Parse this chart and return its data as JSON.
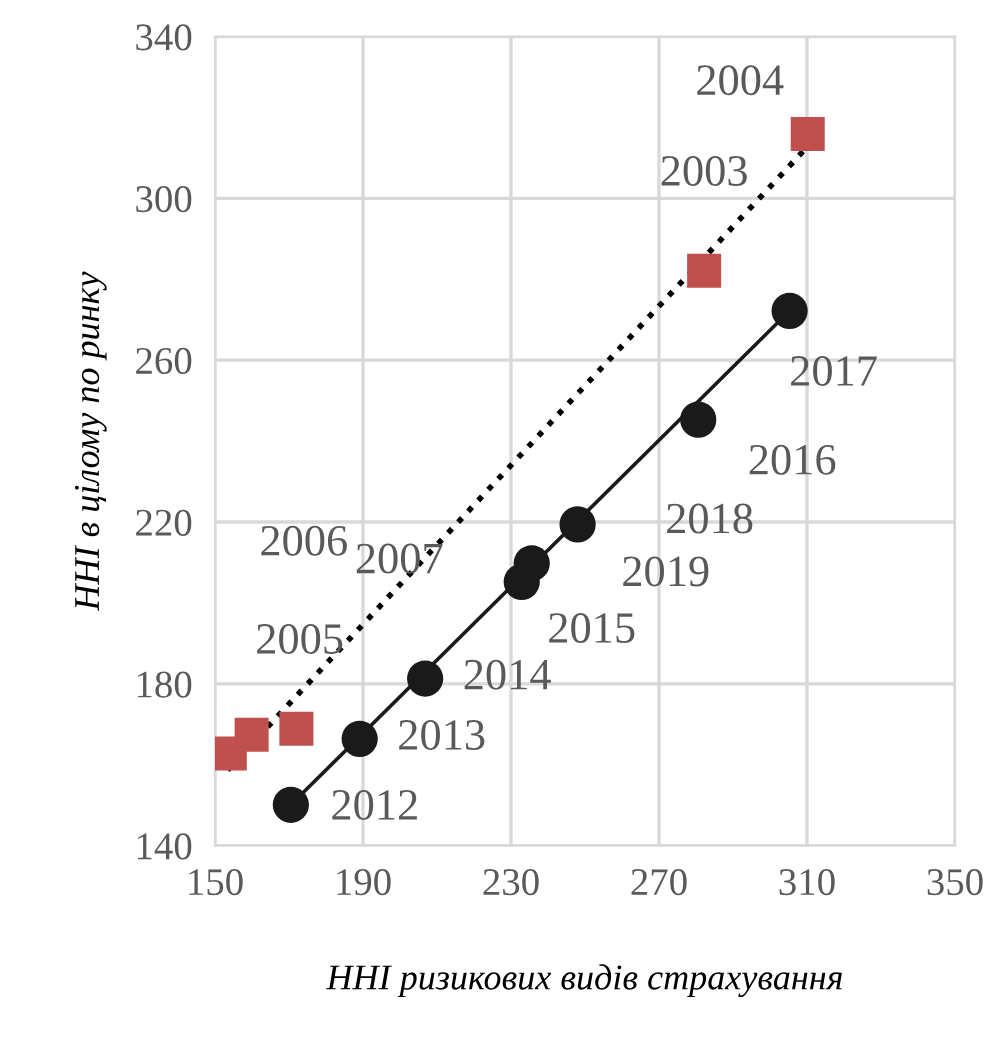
{
  "chart_data": {
    "type": "scatter",
    "xlabel": "HHI ризикових видів страхування",
    "ylabel": "HHI в цілому по ринку",
    "xlim": [
      150,
      350
    ],
    "xticks": [
      150,
      190,
      230,
      270,
      310,
      350
    ],
    "ylim": [
      140,
      340
    ],
    "yticks": [
      140,
      180,
      220,
      260,
      300,
      340
    ],
    "grid": true,
    "series": [
      {
        "type": "line",
        "color": "#000000",
        "line_style": "dotted",
        "marker": "none",
        "x": [
          153.4,
          308.9
        ],
        "values": [
          158.7,
          311.6
        ]
      },
      {
        "type": "line",
        "color": "#1a1a1a",
        "line_style": "solid",
        "marker": "none",
        "x": [
          170.5,
          305.3
        ],
        "values": [
          150.1,
          272.2
        ]
      },
      {
        "color": "#c0504d",
        "marker": "square",
        "x": [
          282.2,
          310.2,
          159.9,
          154.0,
          172.0
        ],
        "values": [
          282.1,
          315.9,
          167.4,
          162.8,
          168.9
        ]
      },
      {
        "color": "#1a1a1a",
        "marker": "circle",
        "x": [
          170.5,
          189.1,
          206.8,
          232.9,
          280.6,
          305.3,
          248.0,
          235.6
        ],
        "values": [
          150.1,
          166.4,
          181.3,
          205.2,
          245.3,
          272.2,
          219.4,
          209.8
        ]
      }
    ],
    "annotations": [
      {
        "text": "2004",
        "x": 310.2,
        "y": 315.9
      },
      {
        "text": "2003",
        "x": 282.2,
        "y": 282.1
      },
      {
        "text": "2017",
        "x": 305.3,
        "y": 272.2
      },
      {
        "text": "2016",
        "x": 280.6,
        "y": 245.3
      },
      {
        "text": "2018",
        "x": 248.0,
        "y": 219.4
      },
      {
        "text": "2019",
        "x": 235.6,
        "y": 209.8
      },
      {
        "text": "2015",
        "x": 232.9,
        "y": 205.2
      },
      {
        "text": "2014",
        "x": 206.8,
        "y": 181.3
      },
      {
        "text": "2013",
        "x": 189.1,
        "y": 166.4
      },
      {
        "text": "2012",
        "x": 170.5,
        "y": 150.1
      },
      {
        "text": "2005",
        "x": 159.9,
        "y": 167.4
      },
      "2006",
      "2007"
    ]
  }
}
